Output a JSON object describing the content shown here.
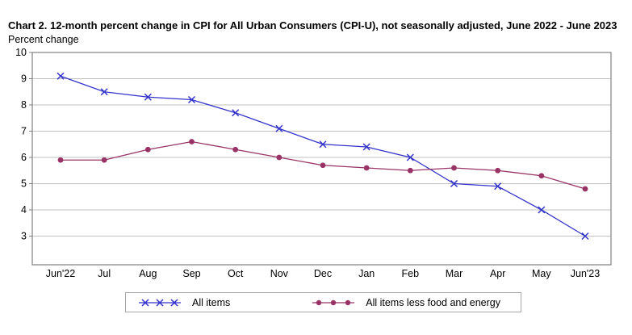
{
  "header": {
    "title": "Chart 2. 12-month percent change in CPI for All Urban Consumers (CPI-U), not seasonally adjusted, June 2022 - June 2023",
    "y_axis_title": "Percent change"
  },
  "chart_data": {
    "type": "line",
    "title": "Chart 2. 12-month percent change in CPI for All Urban Consumers (CPI-U), not seasonally adjusted, June 2022 - June 2023",
    "ylabel": "Percent change",
    "xlabel": "",
    "categories": [
      "Jun'22",
      "Jul",
      "Aug",
      "Sep",
      "Oct",
      "Nov",
      "Dec",
      "Jan",
      "Feb",
      "Mar",
      "Apr",
      "May",
      "Jun'23"
    ],
    "series": [
      {
        "name": "All items",
        "marker": "x",
        "color": "#3333CC",
        "values": [
          9.1,
          8.5,
          8.3,
          8.2,
          7.7,
          7.1,
          6.5,
          6.4,
          6.0,
          5.0,
          4.9,
          4.0,
          3.0
        ]
      },
      {
        "name": "All items less food and energy",
        "marker": "circle",
        "color": "#993366",
        "values": [
          5.9,
          5.9,
          6.3,
          6.6,
          6.3,
          6.0,
          5.7,
          5.6,
          5.5,
          5.6,
          5.5,
          5.3,
          4.8
        ]
      }
    ],
    "ylim": [
      2,
      10
    ],
    "yticks": [
      3,
      4,
      5,
      6,
      7,
      8,
      9,
      10
    ],
    "grid": true,
    "legend_position": "bottom",
    "colors": {
      "gridline": "#C0C0C0",
      "frame": "#808080",
      "text": "#000000"
    }
  }
}
